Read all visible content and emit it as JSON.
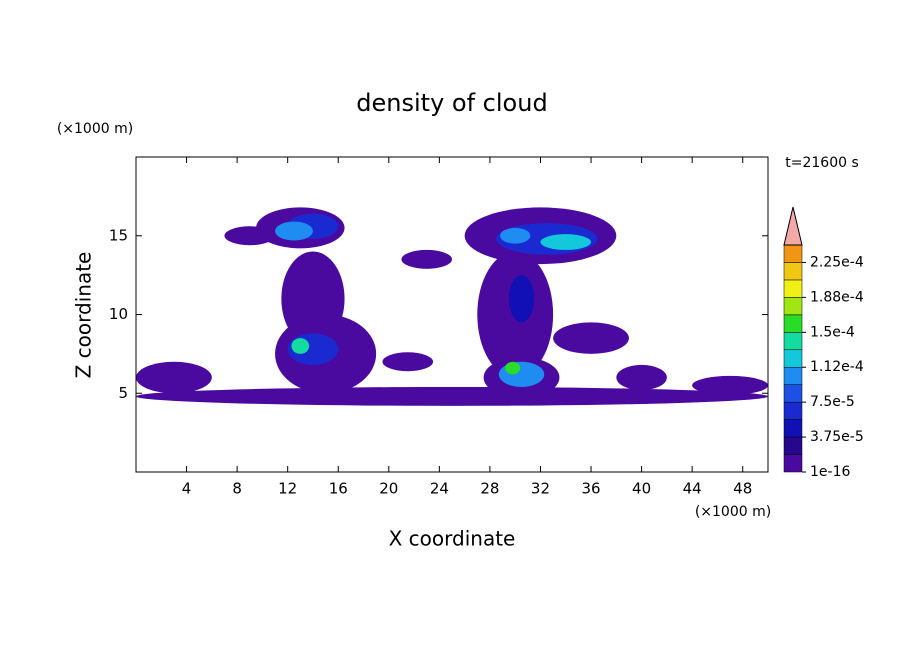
{
  "chart_data": {
    "type": "contour",
    "title": "density of cloud",
    "xlabel": "X coordinate",
    "ylabel": "Z coordinate",
    "x_unit": "(×1000 m)",
    "y_unit": "(×1000 m)",
    "time_label": "t=21600 s",
    "xlim": [
      0,
      50
    ],
    "xticks": [
      4,
      8,
      12,
      16,
      20,
      24,
      28,
      32,
      36,
      40,
      44,
      48
    ],
    "ylim": [
      0,
      20
    ],
    "yticks": [
      5,
      10,
      15
    ],
    "colorbar": {
      "levels": [
        1e-16,
        1.875e-05,
        3.75e-05,
        5.625e-05,
        7.5e-05,
        9.375e-05,
        0.0001125,
        0.00013125,
        0.00015,
        0.00016875,
        0.0001875,
        0.00020625,
        0.000225,
        0.00024375
      ],
      "colors": [
        "#4a0aa0",
        "#26088c",
        "#1010b4",
        "#1a2ad0",
        "#1e50e6",
        "#1e8cf0",
        "#14c8dc",
        "#14dca0",
        "#28dc28",
        "#a0e614",
        "#f0f014",
        "#f0c814",
        "#f09614",
        "#f04a14"
      ],
      "extend_color": "#f4a8a8",
      "ticks": [
        {
          "value": 1e-16,
          "label": "1e-16"
        },
        {
          "value": 3.75e-05,
          "label": "3.75e-5"
        },
        {
          "value": 7.5e-05,
          "label": "7.5e-5"
        },
        {
          "value": 0.0001125,
          "label": "1.12e-4"
        },
        {
          "value": 0.00015,
          "label": "1.5e-4"
        },
        {
          "value": 0.0001875,
          "label": "1.88e-4"
        },
        {
          "value": 0.000225,
          "label": "2.25e-4"
        }
      ]
    },
    "blobs": [
      {
        "x": 25,
        "z": 4.8,
        "rx": 25,
        "rz": 0.6,
        "level": 0
      },
      {
        "x": 3,
        "z": 6,
        "rx": 3,
        "rz": 1,
        "level": 0
      },
      {
        "x": 14,
        "z": 11,
        "rx": 2.5,
        "rz": 3,
        "level": 0
      },
      {
        "x": 13,
        "z": 15.5,
        "rx": 3.5,
        "rz": 1.3,
        "level": 0
      },
      {
        "x": 15,
        "z": 7.5,
        "rx": 4,
        "rz": 2.5,
        "level": 0
      },
      {
        "x": 30,
        "z": 10,
        "rx": 3,
        "rz": 4,
        "level": 0
      },
      {
        "x": 32,
        "z": 15,
        "rx": 6,
        "rz": 1.8,
        "level": 0
      },
      {
        "x": 30.5,
        "z": 6,
        "rx": 3,
        "rz": 1.3,
        "level": 0
      },
      {
        "x": 36,
        "z": 8.5,
        "rx": 3,
        "rz": 1,
        "level": 0
      },
      {
        "x": 23,
        "z": 13.5,
        "rx": 2,
        "rz": 0.6,
        "level": 0
      },
      {
        "x": 21.5,
        "z": 7,
        "rx": 2,
        "rz": 0.6,
        "level": 0
      },
      {
        "x": 9,
        "z": 15,
        "rx": 2,
        "rz": 0.6,
        "level": 0
      },
      {
        "x": 40,
        "z": 6,
        "rx": 2,
        "rz": 0.8,
        "level": 0
      },
      {
        "x": 47,
        "z": 5.5,
        "rx": 3,
        "rz": 0.6,
        "level": 0
      },
      {
        "x": 14,
        "z": 15.6,
        "rx": 2,
        "rz": 0.8,
        "level": 3
      },
      {
        "x": 12.5,
        "z": 15.3,
        "rx": 1.5,
        "rz": 0.6,
        "level": 5
      },
      {
        "x": 14,
        "z": 7.8,
        "rx": 2,
        "rz": 1,
        "level": 3
      },
      {
        "x": 13,
        "z": 8,
        "rx": 0.7,
        "rz": 0.5,
        "level": 7
      },
      {
        "x": 32.5,
        "z": 14.8,
        "rx": 4,
        "rz": 1,
        "level": 3
      },
      {
        "x": 34,
        "z": 14.6,
        "rx": 2,
        "rz": 0.5,
        "level": 6
      },
      {
        "x": 30,
        "z": 15,
        "rx": 1.2,
        "rz": 0.5,
        "level": 5
      },
      {
        "x": 30.5,
        "z": 11,
        "rx": 1,
        "rz": 1.5,
        "level": 2
      },
      {
        "x": 30.5,
        "z": 6.2,
        "rx": 1.8,
        "rz": 0.8,
        "level": 5
      },
      {
        "x": 29.8,
        "z": 6.6,
        "rx": 0.6,
        "rz": 0.4,
        "level": 8
      }
    ]
  }
}
